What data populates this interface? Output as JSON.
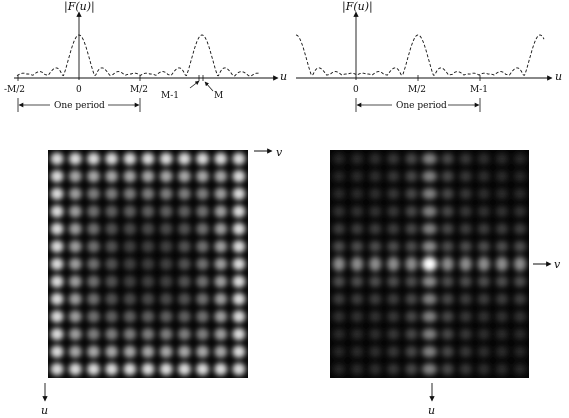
{
  "top_left": {
    "y_label": "|F(u)|",
    "axis_label": "u",
    "ticks": [
      "-M/2",
      "0",
      "M/2"
    ],
    "marker_labels": [
      "M-1",
      "M"
    ],
    "period_label": "One period"
  },
  "top_right": {
    "y_label": "|F(u)|",
    "axis_label": "u",
    "ticks": [
      "0",
      "M/2",
      "M-1"
    ],
    "period_label": "One period"
  },
  "bottom_left": {
    "h_axis_label": "v",
    "v_axis_label": "u"
  },
  "bottom_right": {
    "h_axis_label": "v",
    "v_axis_label": "u"
  },
  "colors": {
    "ink": "#111111",
    "image_background": "#050505"
  }
}
